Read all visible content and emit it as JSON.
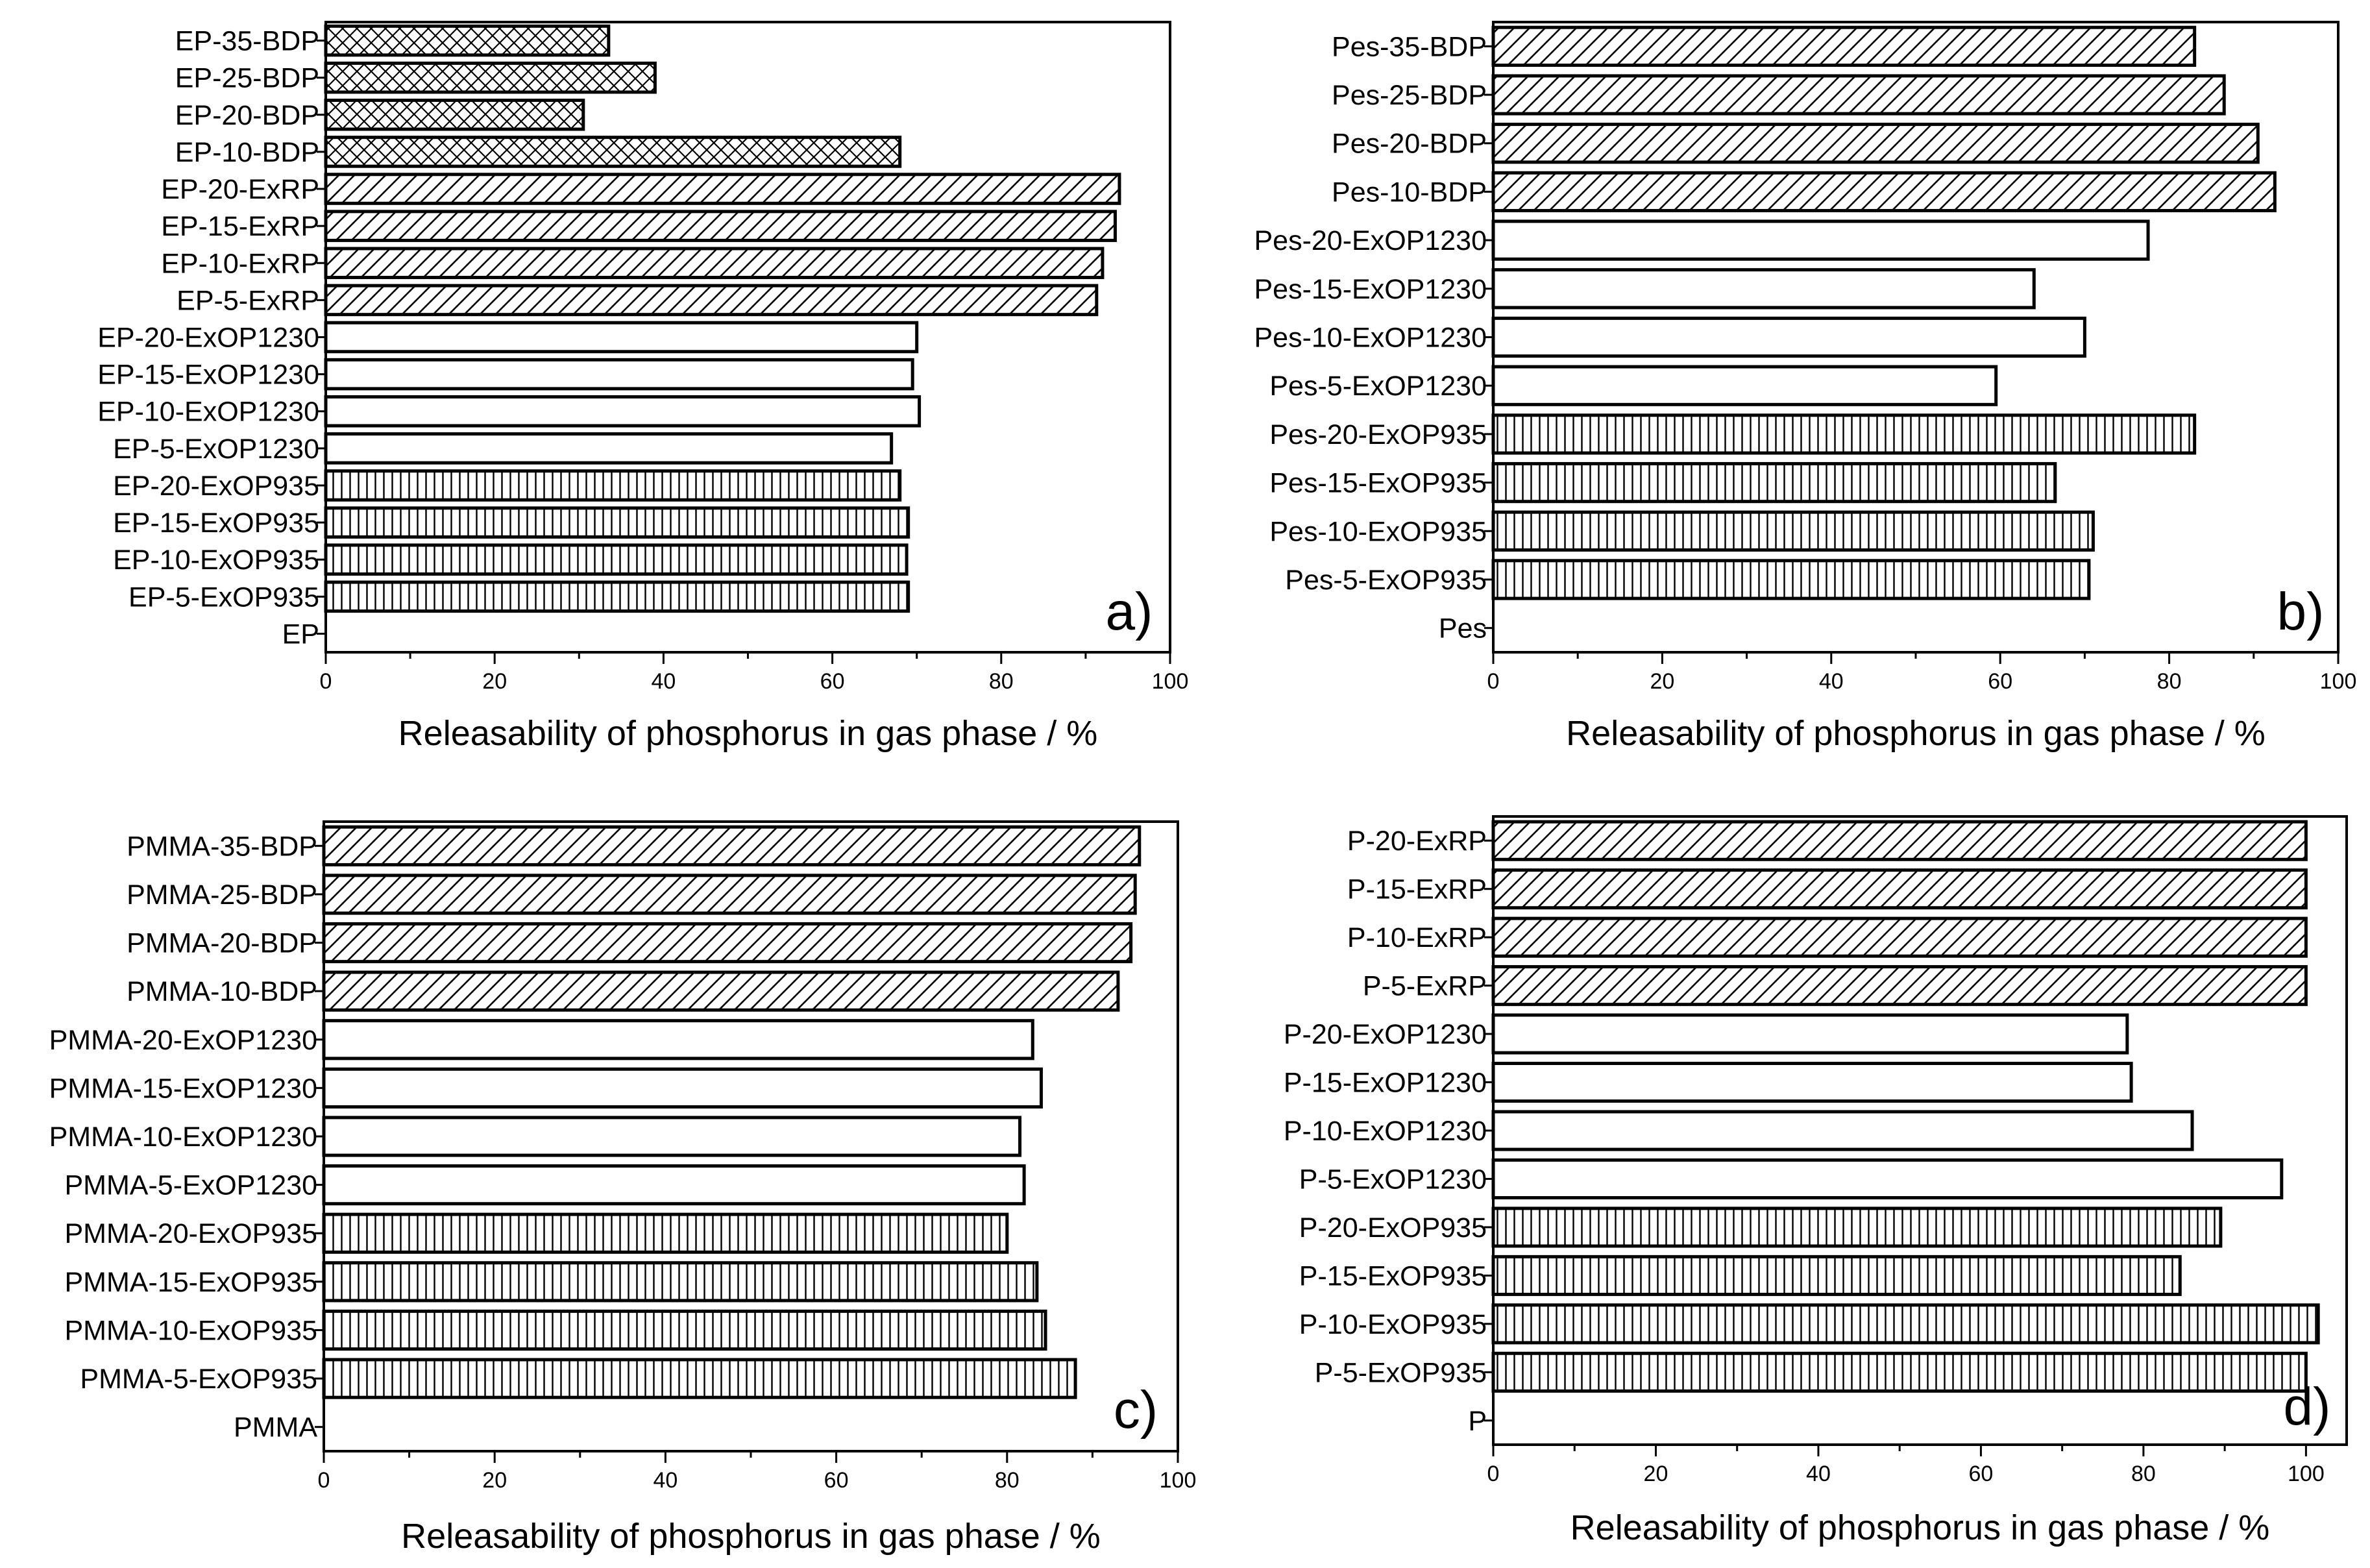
{
  "chart_data": [
    {
      "type": "bar",
      "orientation": "horizontal",
      "panel_label": "a)",
      "xlabel": "Releasability of phosphorus in gas phase  /  %",
      "xlim": [
        0,
        100
      ],
      "xticks": [
        0,
        20,
        40,
        60,
        80,
        100
      ],
      "categories": [
        "EP-35-BDP",
        "EP-25-BDP",
        "EP-20-BDP",
        "EP-10-BDP",
        "EP-20-ExRP",
        "EP-15-ExRP",
        "EP-10-ExRP",
        "EP-5-ExRP",
        "EP-20-ExOP1230",
        "EP-15-ExOP1230",
        "EP-10-ExOP1230",
        "EP-5-ExOP1230",
        "EP-20-ExOP935",
        "EP-15-ExOP935",
        "EP-10-ExOP935",
        "EP-5-ExOP935",
        "EP"
      ],
      "values": [
        33.5,
        39,
        30.5,
        68,
        94,
        93.5,
        92,
        91.3,
        70,
        69.5,
        70.3,
        67,
        68,
        69,
        68.8,
        69,
        0
      ],
      "patterns": [
        "cross",
        "cross",
        "cross",
        "cross",
        "diag",
        "diag",
        "diag",
        "diag",
        "none",
        "none",
        "none",
        "none",
        "vert",
        "vert",
        "vert",
        "vert",
        "none"
      ]
    },
    {
      "type": "bar",
      "orientation": "horizontal",
      "panel_label": "b)",
      "xlabel": "Releasability of phosphorus in gas phase  /  %",
      "xlim": [
        0,
        100
      ],
      "xticks": [
        0,
        20,
        40,
        60,
        80,
        100
      ],
      "categories": [
        "Pes-35-BDP",
        "Pes-25-BDP",
        "Pes-20-BDP",
        "Pes-10-BDP",
        "Pes-20-ExOP1230",
        "Pes-15-ExOP1230",
        "Pes-10-ExOP1230",
        "Pes-5-ExOP1230",
        "Pes-20-ExOP935",
        "Pes-15-ExOP935",
        "Pes-10-ExOP935",
        "Pes-5-ExOP935",
        "Pes"
      ],
      "values": [
        83,
        86.5,
        90.5,
        92.5,
        77.5,
        64,
        70,
        59.5,
        83,
        66.5,
        71,
        70.5,
        0
      ],
      "patterns": [
        "diag",
        "diag",
        "diag",
        "diag",
        "none",
        "none",
        "none",
        "none",
        "vert",
        "vert",
        "vert",
        "vert",
        "none"
      ]
    },
    {
      "type": "bar",
      "orientation": "horizontal",
      "panel_label": "c)",
      "xlabel": "Releasability of phosphorus in gas phase  /  %",
      "xlim": [
        0,
        100
      ],
      "xticks": [
        0,
        20,
        40,
        60,
        80,
        100
      ],
      "categories": [
        "PMMA-35-BDP",
        "PMMA-25-BDP",
        "PMMA-20-BDP",
        "PMMA-10-BDP",
        "PMMA-20-ExOP1230",
        "PMMA-15-ExOP1230",
        "PMMA-10-ExOP1230",
        "PMMA-5-ExOP1230",
        "PMMA-20-ExOP935",
        "PMMA-15-ExOP935",
        "PMMA-10-ExOP935",
        "PMMA-5-ExOP935",
        "PMMA"
      ],
      "values": [
        95.5,
        95,
        94.5,
        93,
        83,
        84,
        81.5,
        82,
        80,
        83.5,
        84.5,
        88,
        0
      ],
      "patterns": [
        "diag",
        "diag",
        "diag",
        "diag",
        "none",
        "none",
        "none",
        "none",
        "vert",
        "vert",
        "vert",
        "vert",
        "none"
      ]
    },
    {
      "type": "bar",
      "orientation": "horizontal",
      "panel_label": "d)",
      "xlabel": "Releasability of phosphorus in gas phase  /  %",
      "xlim": [
        0,
        105
      ],
      "xticks": [
        0,
        20,
        40,
        60,
        80,
        100
      ],
      "categories": [
        "P-20-ExRP",
        "P-15-ExRP",
        "P-10-ExRP",
        "P-5-ExRP",
        "P-20-ExOP1230",
        "P-15-ExOP1230",
        "P-10-ExOP1230",
        "P-5-ExOP1230",
        "P-20-ExOP935",
        "P-15-ExOP935",
        "P-10-ExOP935",
        "P-5-ExOP935",
        "P"
      ],
      "values": [
        100,
        100,
        100,
        100,
        78,
        78.5,
        86,
        97,
        89.5,
        84.5,
        101.5,
        100,
        0
      ],
      "patterns": [
        "diag",
        "diag",
        "diag",
        "diag",
        "none",
        "none",
        "none",
        "none",
        "vert",
        "vert",
        "vert",
        "vert",
        "none"
      ]
    }
  ]
}
